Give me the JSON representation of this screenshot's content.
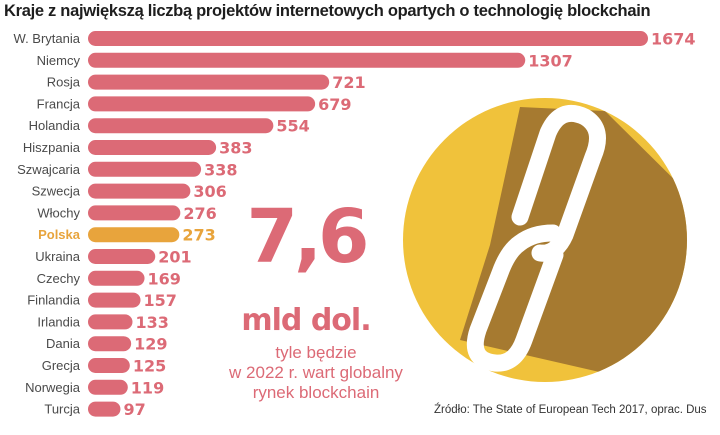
{
  "colors": {
    "bar": "#dc6a76",
    "highlight": "#e8a43c",
    "circle": "#f0c23b",
    "circle_shadow": "#a67a30",
    "text": "#4a4a4a"
  },
  "chart_data": {
    "type": "bar",
    "orientation": "horizontal",
    "title": "Kraje z największą liczbą projektów internetowych opartych o technologię blockchain",
    "xlabel": "",
    "ylabel": "",
    "grid": false,
    "highlight_category": "Polska",
    "categories": [
      "W. Brytania",
      "Niemcy",
      "Rosja",
      "Francja",
      "Holandia",
      "Hiszpania",
      "Szwajcaria",
      "Szwecja",
      "Włochy",
      "Polska",
      "Ukraina",
      "Czechy",
      "Finlandia",
      "Irlandia",
      "Dania",
      "Grecja",
      "Norwegia",
      "Turcja"
    ],
    "values": [
      1674,
      1307,
      721,
      679,
      554,
      383,
      338,
      306,
      276,
      273,
      201,
      169,
      157,
      133,
      129,
      125,
      119,
      97
    ],
    "xlim": [
      0,
      1674
    ]
  },
  "callout": {
    "number": "7,6",
    "unit": "mld dol.",
    "caption_lines": [
      "tyle będzie",
      "w 2022 r. wart globalny",
      "rynek blockchain"
    ]
  },
  "emblem": {
    "icon": "chain-link-icon"
  },
  "source": "Źródło: The State of European Tech 2017, oprac. Dus"
}
